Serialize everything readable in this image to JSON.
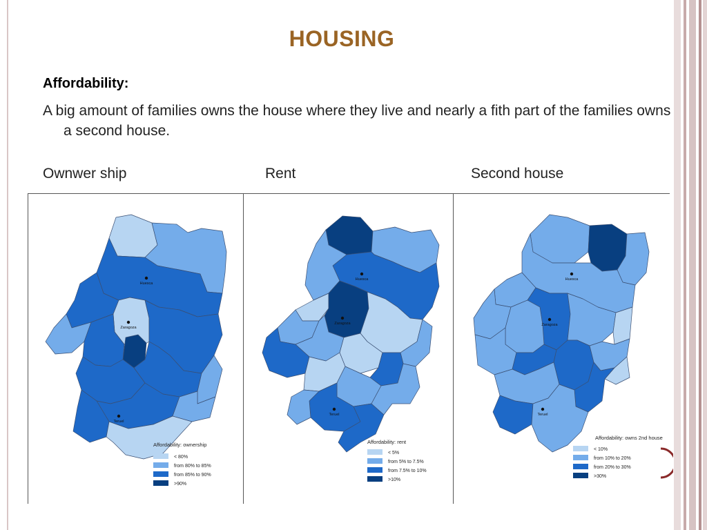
{
  "slide": {
    "title": "HOUSING",
    "subheading": "Affordability:",
    "body": "A big amount of families owns the house where they live and nearly a fith part of the families owns a second house.",
    "title_color": "#9a6424"
  },
  "columns": [
    {
      "label": "Ownwer ship"
    },
    {
      "label": "Rent"
    },
    {
      "label": "Second house"
    }
  ],
  "palette": {
    "c1": "#b7d5f2",
    "c2": "#74acea",
    "c3": "#1e69c8",
    "c4": "#083f80"
  },
  "maps": [
    {
      "cities": [
        "Huesca",
        "Zaragoza",
        "Teruel"
      ],
      "legend_title": "Affordability: ownership",
      "legend": [
        "< 80%",
        "from 80% to 85%",
        "from 85% to 90%",
        ">90%"
      ]
    },
    {
      "cities": [
        "Huesca",
        "Zaragoza",
        "Teruel"
      ],
      "legend_title": "Affordability: rent",
      "legend": [
        "< 5%",
        "from 5% to 7.5%",
        "from 7.5% to 10%",
        ">10%"
      ]
    },
    {
      "cities": [
        "Huesca",
        "Zaragoza",
        "Teruel"
      ],
      "legend_title": "Affordability: owns 2nd house",
      "legend": [
        "< 10%",
        "from 10% to 20%",
        "from 20% to 30%",
        ">30%"
      ]
    }
  ]
}
